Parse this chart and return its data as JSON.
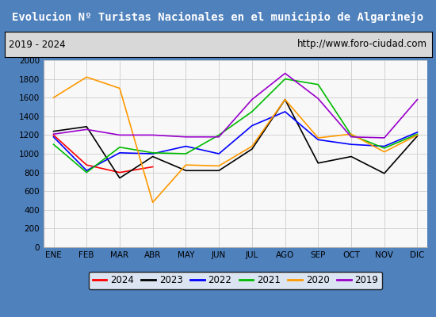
{
  "title": "Evolucion Nº Turistas Nacionales en el municipio de Algarinejo",
  "subtitle_left": "2019 - 2024",
  "subtitle_right": "http://www.foro-ciudad.com",
  "title_bg_color": "#4f81bd",
  "title_text_color": "#ffffff",
  "months": [
    "ENE",
    "FEB",
    "MAR",
    "ABR",
    "MAY",
    "JUN",
    "JUL",
    "AGO",
    "SEP",
    "OCT",
    "NOV",
    "DIC"
  ],
  "ylim": [
    0,
    2000
  ],
  "yticks": [
    0,
    200,
    400,
    600,
    800,
    1000,
    1200,
    1400,
    1600,
    1800,
    2000
  ],
  "series": {
    "2024": {
      "color": "#ff0000",
      "data": [
        1200,
        880,
        800,
        860,
        null,
        null,
        null,
        null,
        null,
        null,
        null,
        null
      ]
    },
    "2023": {
      "color": "#000000",
      "data": [
        1240,
        1290,
        740,
        970,
        820,
        820,
        1050,
        1580,
        900,
        970,
        790,
        1190
      ]
    },
    "2022": {
      "color": "#0000ff",
      "data": [
        1180,
        820,
        1010,
        1000,
        1080,
        1000,
        1300,
        1450,
        1150,
        1100,
        1080,
        1230
      ]
    },
    "2021": {
      "color": "#00bb00",
      "data": [
        1100,
        800,
        1070,
        1010,
        1000,
        1200,
        1450,
        1800,
        1740,
        1200,
        1060,
        1210
      ]
    },
    "2020": {
      "color": "#ff9900",
      "data": [
        1600,
        1820,
        1700,
        480,
        880,
        870,
        1080,
        1580,
        1170,
        1210,
        1020,
        1200
      ]
    },
    "2019": {
      "color": "#9900cc",
      "data": [
        1210,
        1260,
        1200,
        1200,
        1180,
        1180,
        1580,
        1860,
        1590,
        1180,
        1170,
        1580
      ]
    }
  },
  "legend_order": [
    "2024",
    "2023",
    "2022",
    "2021",
    "2020",
    "2019"
  ],
  "background_color": "#f0f0f0",
  "plot_bg_color": "#f8f8f8",
  "grid_color": "#cccccc",
  "subtitle_bg": "#d8d8d8",
  "outer_border_color": "#4f81bd"
}
